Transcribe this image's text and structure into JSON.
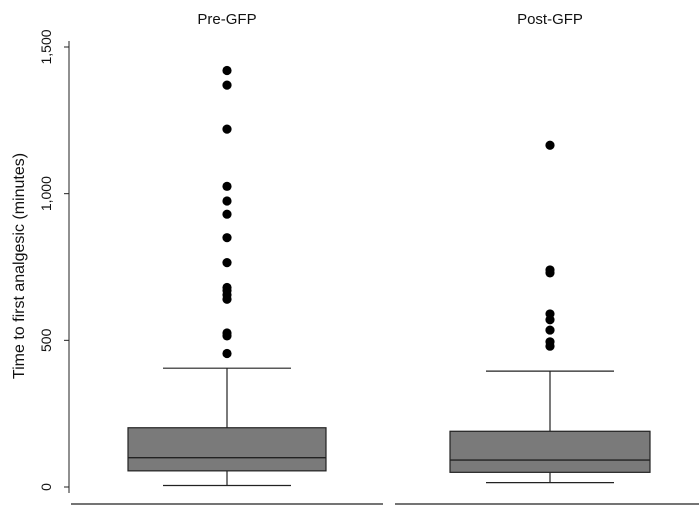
{
  "chart_data": {
    "type": "box",
    "ylabel": "Time to first analgesic (minutes)",
    "ylim": [
      0,
      1500
    ],
    "yticks": [
      0,
      500,
      1000,
      1500
    ],
    "ytick_labels": [
      "0",
      "500",
      "1,000",
      "1,500"
    ],
    "grid": false,
    "box_color": "#7a7a7a",
    "panels": [
      {
        "title": "Pre-GFP",
        "whisker_low": 5,
        "q1": 55,
        "median": 100,
        "q3": 202,
        "whisker_high": 405,
        "outliers": [
          455,
          515,
          525,
          640,
          655,
          670,
          680,
          765,
          850,
          930,
          975,
          1025,
          1220,
          1370,
          1420
        ]
      },
      {
        "title": "Post-GFP",
        "whisker_low": 15,
        "q1": 50,
        "median": 92,
        "q3": 190,
        "whisker_high": 395,
        "outliers": [
          480,
          495,
          535,
          570,
          590,
          730,
          740,
          1165
        ]
      }
    ]
  }
}
